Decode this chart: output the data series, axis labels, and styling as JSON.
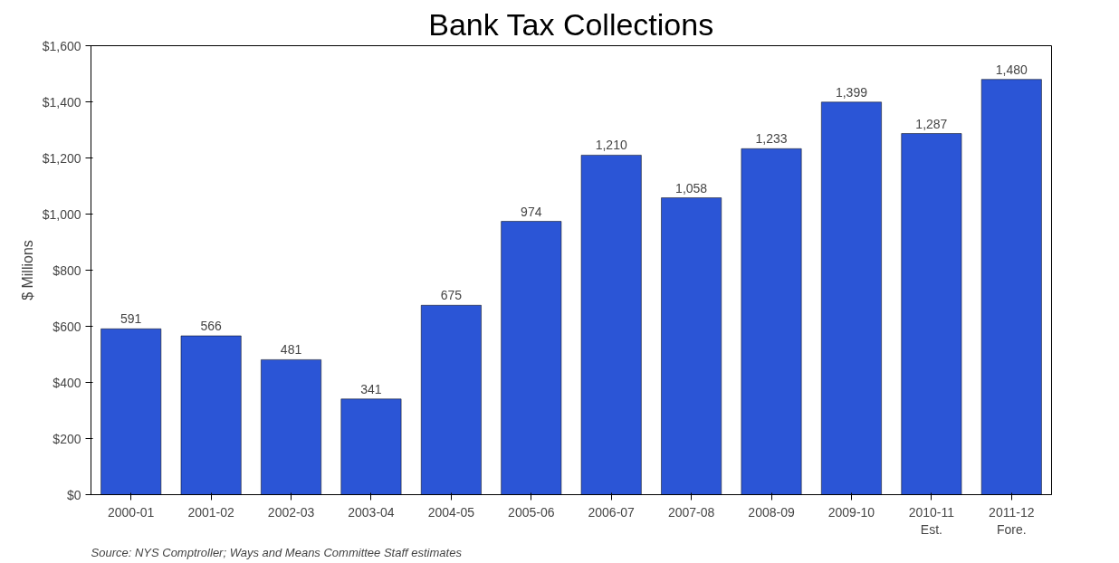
{
  "chart_data": {
    "type": "bar",
    "title": "Bank Tax Collections",
    "ylabel": "$ Millions",
    "categories": [
      "2000-01",
      "2001-02",
      "2002-03",
      "2003-04",
      "2004-05",
      "2005-06",
      "2006-07",
      "2007-08",
      "2008-09",
      "2009-10",
      "2010-11\nEst.",
      "2011-12\nFore."
    ],
    "values": [
      591,
      566,
      481,
      341,
      675,
      974,
      1210,
      1058,
      1233,
      1399,
      1287,
      1480
    ],
    "color": "#2b55d6",
    "ylim": [
      0,
      1600
    ],
    "yticks": [
      {
        "value": 0,
        "label": "$0"
      },
      {
        "value": 200,
        "label": "$200"
      },
      {
        "value": 400,
        "label": "$400"
      },
      {
        "value": 600,
        "label": "$600"
      },
      {
        "value": 800,
        "label": "$800"
      },
      {
        "value": 1000,
        "label": "$1,000"
      },
      {
        "value": 1200,
        "label": "$1,200"
      },
      {
        "value": 1400,
        "label": "$1,400"
      },
      {
        "value": 1600,
        "label": "$1,600"
      }
    ],
    "grid": false,
    "value_labels": [
      "591",
      "566",
      "481",
      "341",
      "675",
      "974",
      "1,210",
      "1,058",
      "1,233",
      "1,399",
      "1,287",
      "1,480"
    ],
    "annotations": [
      "Source:  NYS Comptroller;  Ways and Means Committee Staff estimates"
    ]
  }
}
